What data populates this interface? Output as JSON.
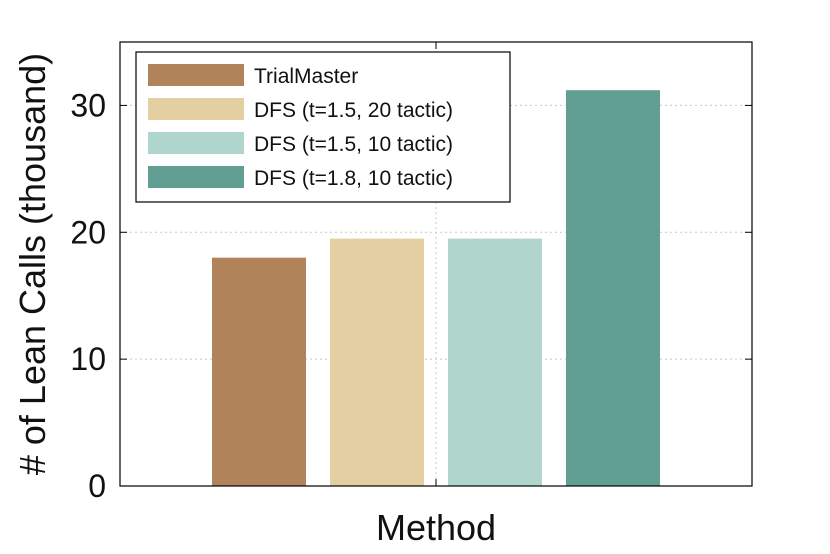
{
  "chart_data": {
    "type": "bar",
    "title": "",
    "xlabel": "Method",
    "ylabel": "# of Lean Calls (thousand)",
    "ylim": [
      0,
      35
    ],
    "yticks": [
      0,
      10,
      20,
      30
    ],
    "grid": true,
    "legend_position": "top-left",
    "series": [
      {
        "name": "TrialMaster",
        "value": 18.0,
        "color": "#b0835b"
      },
      {
        "name": "DFS (t=1.5, 20 tactic)",
        "value": 19.5,
        "color": "#e3cfa1"
      },
      {
        "name": "DFS (t=1.5, 10 tactic)",
        "value": 19.5,
        "color": "#afd5cc"
      },
      {
        "name": "DFS (t=1.8, 10 tactic)",
        "value": 31.2,
        "color": "#619f93"
      }
    ]
  }
}
